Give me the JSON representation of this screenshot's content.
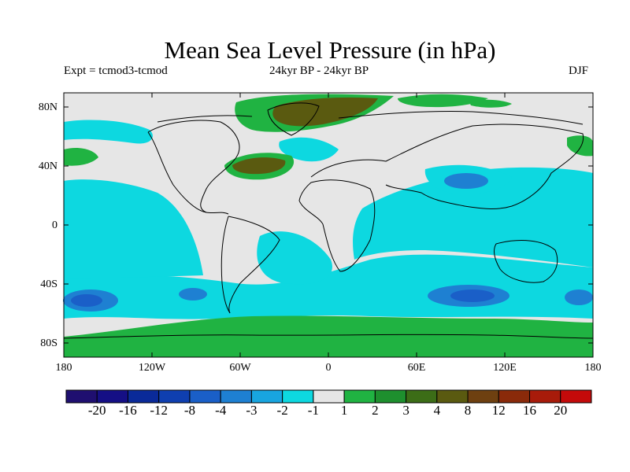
{
  "title": "Mean Sea Level Pressure (in hPa)",
  "subtitle_left": "Expt = tcmod3-tcmod",
  "subtitle_center": "24kyr BP - 24kyr BP",
  "subtitle_right": "DJF",
  "y_ticks": [
    "80N",
    "40N",
    "0",
    "40S",
    "80S"
  ],
  "x_ticks": [
    "180",
    "120W",
    "60W",
    "0",
    "60E",
    "120E",
    "180"
  ],
  "colorbar": {
    "colors": [
      "#1f0f70",
      "#150f85",
      "#0a2a99",
      "#0f3fb0",
      "#1a5fc8",
      "#1e80d2",
      "#18a5e0",
      "#0dd8e0",
      "#e6e6e6",
      "#20b342",
      "#1e8f2e",
      "#3c6d17",
      "#5a5a10",
      "#6e4010",
      "#8a2a0a",
      "#a81b0a",
      "#c40a0a"
    ],
    "labels": [
      "-20",
      "-16",
      "-12",
      "-8",
      "-4",
      "-3",
      "-2",
      "-1",
      "1",
      "2",
      "3",
      "4",
      "8",
      "12",
      "16",
      "20"
    ]
  },
  "map_colors": {
    "ocean_neg_light": "#0dd8e0",
    "ocean_neg_mid": "#18a5e0",
    "ocean_neg_dark": "#1e80d2",
    "neutral": "#e6e6e6",
    "pos_light": "#20b342",
    "pos_dark": "#5a5a10",
    "coast": "#000000"
  }
}
